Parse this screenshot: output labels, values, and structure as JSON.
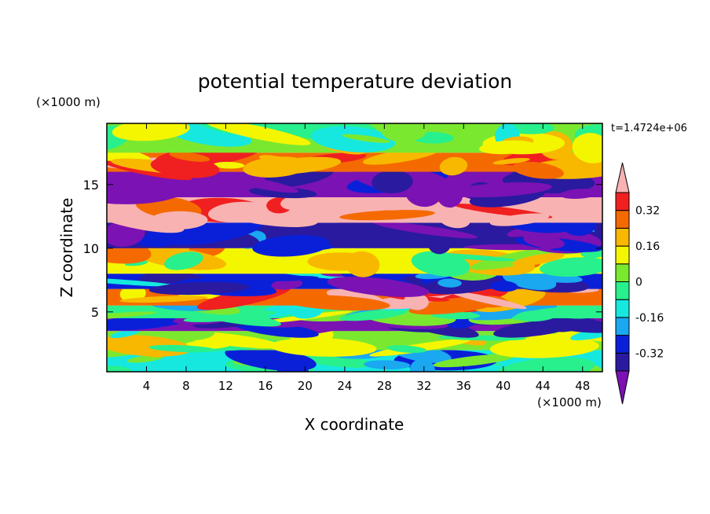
{
  "chart_data": {
    "type": "heatmap",
    "title": "potential temperature deviation",
    "xlabel": "X coordinate",
    "ylabel": "Z coordinate",
    "x_unit": "(×1000 m)",
    "z_unit": "(×1000 m)",
    "time_label": "t=1.4724e+06",
    "xlim": [
      0,
      50
    ],
    "ylim": [
      0.3,
      19.8
    ],
    "x_ticks": [
      "4",
      "8",
      "12",
      "16",
      "20",
      "24",
      "28",
      "32",
      "36",
      "40",
      "44",
      "48"
    ],
    "y_ticks": [
      "5",
      "10",
      "15"
    ],
    "colorbar": {
      "levels": [
        -0.4,
        -0.32,
        -0.24,
        -0.16,
        -0.08,
        0,
        0.08,
        0.16,
        0.24,
        0.32,
        0.4
      ],
      "tick_labels": [
        "-0.32",
        "-0.16",
        "0",
        "0.16",
        "0.32"
      ],
      "tick_values": [
        -0.32,
        -0.16,
        0,
        0.16,
        0.32
      ],
      "colors": [
        "#7b12b4",
        "#2a1aa0",
        "#0a20d8",
        "#1aa8f0",
        "#16e8e0",
        "#28f08c",
        "#7be830",
        "#f4f600",
        "#f8b800",
        "#f46a00",
        "#f02020",
        "#f9b2b2"
      ]
    },
    "bands": [
      {
        "z0": 0.3,
        "z1": 2.0,
        "base": "#16e8e0"
      },
      {
        "z0": 2.0,
        "z1": 3.5,
        "base": "#7be830"
      },
      {
        "z0": 3.5,
        "z1": 4.5,
        "base": "#7b12b4"
      },
      {
        "z0": 4.5,
        "z1": 5.5,
        "base": "#28f08c"
      },
      {
        "z0": 5.5,
        "z1": 6.8,
        "base": "#f46a00"
      },
      {
        "z0": 6.8,
        "z1": 8.0,
        "base": "#0a20d8"
      },
      {
        "z0": 8.0,
        "z1": 10.0,
        "base": "#f4f600"
      },
      {
        "z0": 10.0,
        "z1": 12.0,
        "base": "#2a1aa0"
      },
      {
        "z0": 12.0,
        "z1": 14.0,
        "base": "#f9b2b2"
      },
      {
        "z0": 14.0,
        "z1": 16.0,
        "base": "#7b12b4"
      },
      {
        "z0": 16.0,
        "z1": 17.5,
        "base": "#f46a00"
      },
      {
        "z0": 17.5,
        "z1": 19.8,
        "base": "#7be830"
      }
    ]
  }
}
